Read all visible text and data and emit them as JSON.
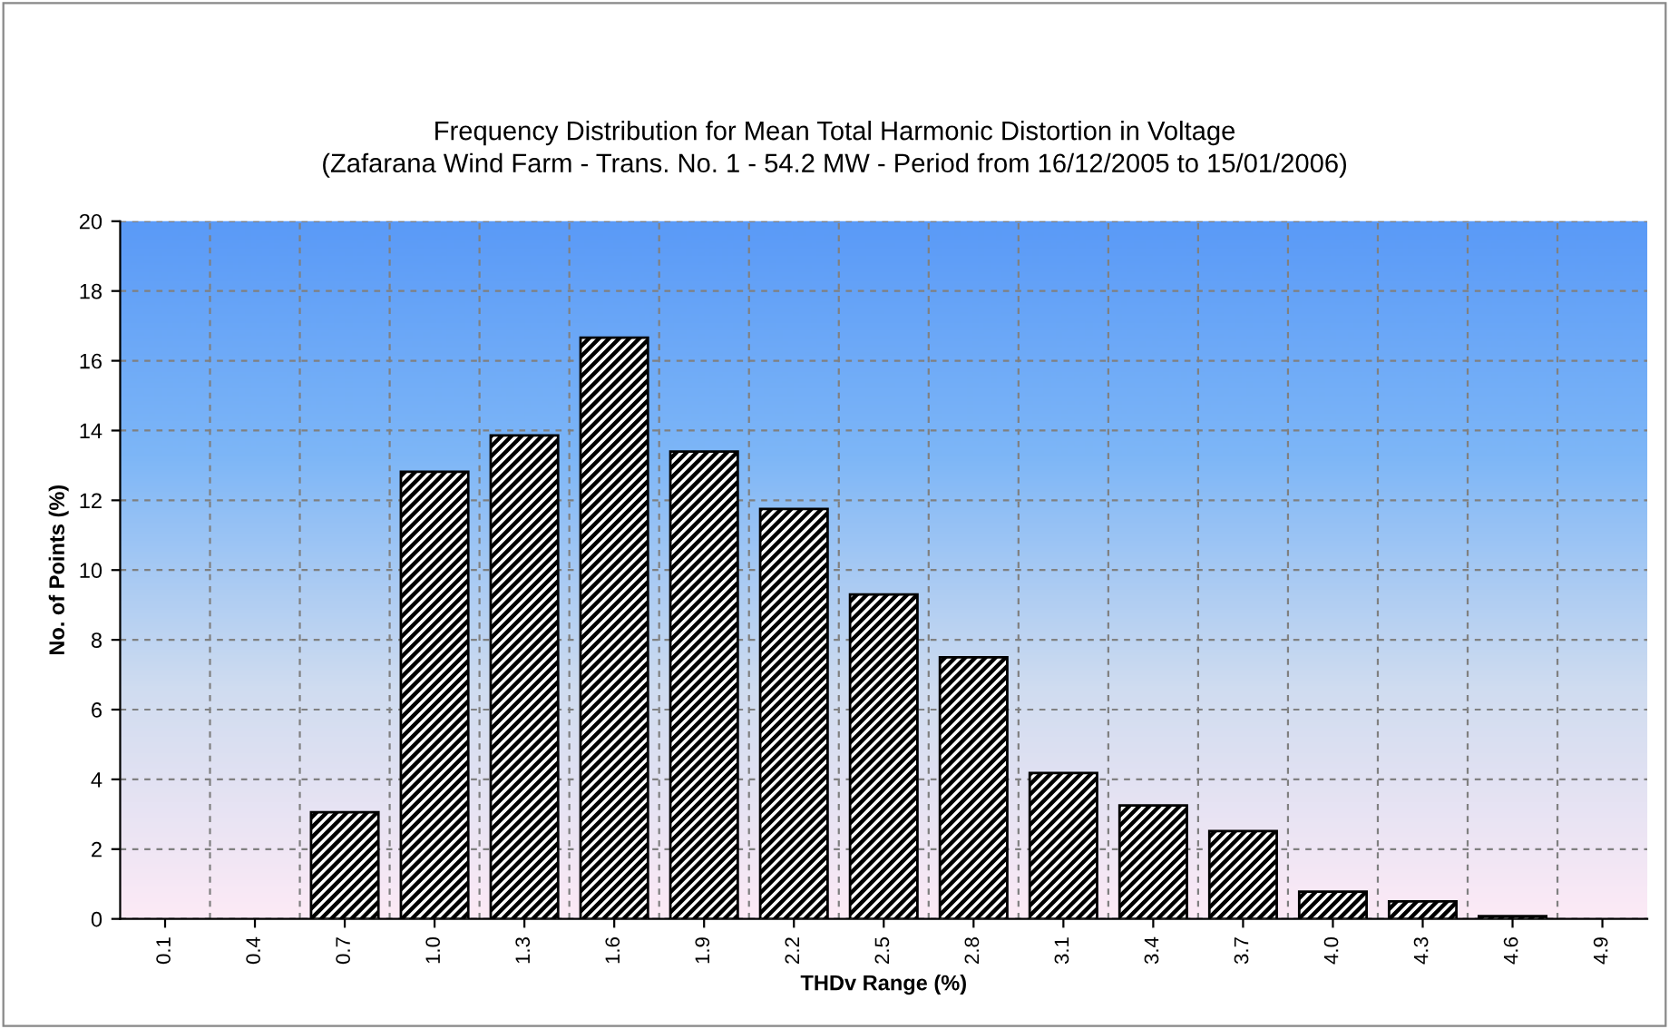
{
  "chart_data": {
    "type": "bar",
    "title": "Frequency Distribution for Mean Total Harmonic Distortion in Voltage",
    "subtitle": "(Zafarana Wind Farm - Trans. No. 1 - 54.2 MW - Period from 16/12/2005 to 15/01/2006)",
    "xlabel": "THDv Range (%)",
    "ylabel": "No. of Points (%)",
    "categories": [
      "0.1",
      "0.4",
      "0.7",
      "1.0",
      "1.3",
      "1.6",
      "1.9",
      "2.2",
      "2.5",
      "2.8",
      "3.1",
      "3.4",
      "3.7",
      "4.0",
      "4.3",
      "4.6",
      "4.9"
    ],
    "values": [
      0,
      0,
      3.06,
      12.82,
      13.86,
      16.66,
      13.4,
      11.75,
      9.3,
      7.5,
      4.18,
      3.25,
      2.52,
      0.78,
      0.5,
      0.08,
      0
    ],
    "color": "#000000",
    "ylim": [
      0,
      20
    ],
    "yticks": [
      0,
      2,
      4,
      6,
      8,
      10,
      12,
      14,
      16,
      18,
      20
    ],
    "grid": true,
    "legend": false
  }
}
